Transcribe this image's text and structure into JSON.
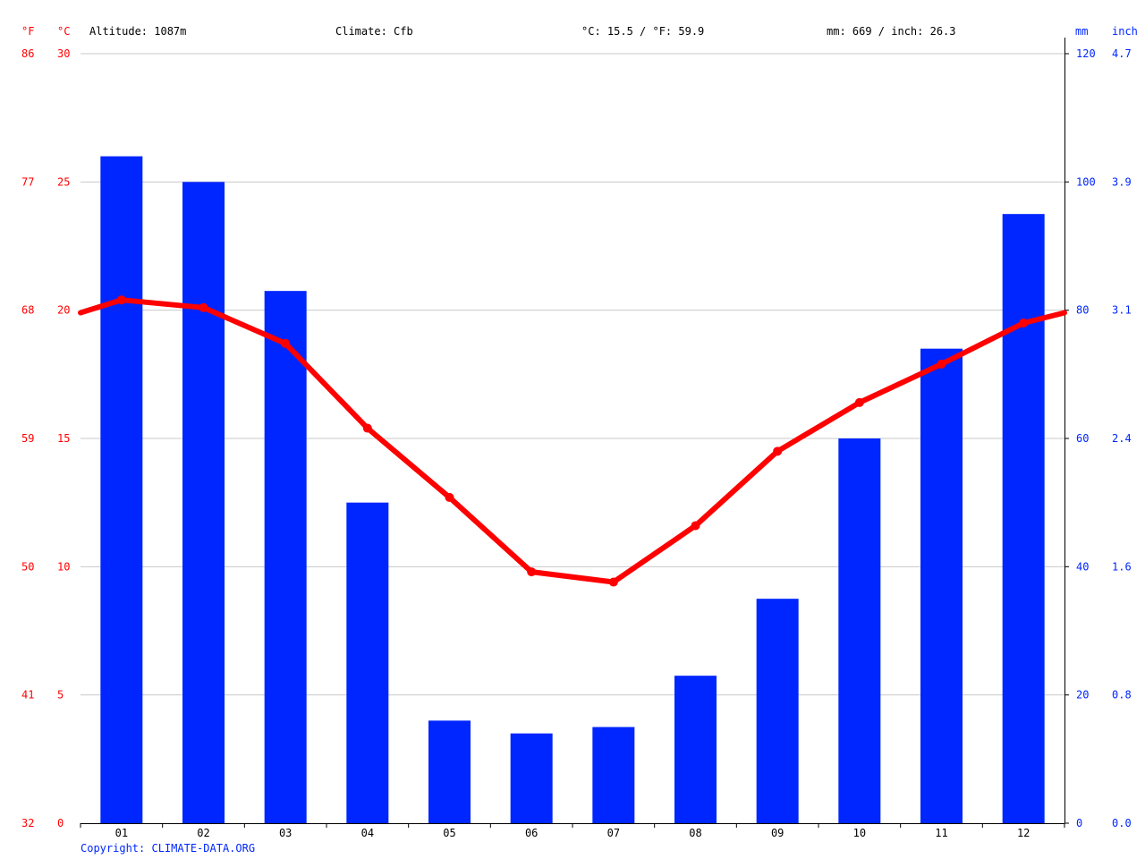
{
  "header": {
    "altitude": "Altitude: 1087m",
    "climate": "Climate: Cfb",
    "temp_avg": "°C: 15.5 / °F: 59.9",
    "precip_total": "mm: 669 / inch: 26.3"
  },
  "units": {
    "fahrenheit": "°F",
    "celsius": "°C",
    "mm": "mm",
    "inch": "inch"
  },
  "copyright": "Copyright: CLIMATE-DATA.ORG",
  "colors": {
    "temperature": "#ff0000",
    "precipitation": "#0026ff",
    "grid": "#c8c8c8",
    "axis": "#000000"
  },
  "chart_data": {
    "type": "bar",
    "categories": [
      "01",
      "02",
      "03",
      "04",
      "05",
      "06",
      "07",
      "08",
      "09",
      "10",
      "11",
      "12"
    ],
    "series": [
      {
        "name": "mm",
        "type": "bar",
        "axis": "right",
        "values": [
          104,
          100,
          83,
          50,
          16,
          14,
          15,
          23,
          35,
          60,
          74,
          95
        ]
      },
      {
        "name": "°C",
        "type": "line",
        "axis": "left",
        "values": [
          20.4,
          20.1,
          18.7,
          15.4,
          12.7,
          9.8,
          9.4,
          11.6,
          14.5,
          16.4,
          17.9,
          19.5
        ],
        "edge_values": [
          19.9,
          19.9
        ]
      }
    ],
    "left_axis": {
      "celsius_ticks": [
        0,
        5,
        10,
        15,
        20,
        25,
        30
      ],
      "fahrenheit_ticks": [
        32,
        41,
        50,
        59,
        68,
        77,
        86
      ],
      "ylim": [
        0,
        30
      ]
    },
    "right_axis": {
      "mm_ticks": [
        0,
        20,
        40,
        60,
        80,
        100,
        120
      ],
      "inch_ticks": [
        "0.0",
        "0.8",
        "1.6",
        "2.4",
        "3.1",
        "3.9",
        "4.7"
      ],
      "ylim": [
        0,
        120
      ]
    },
    "grid": true
  }
}
